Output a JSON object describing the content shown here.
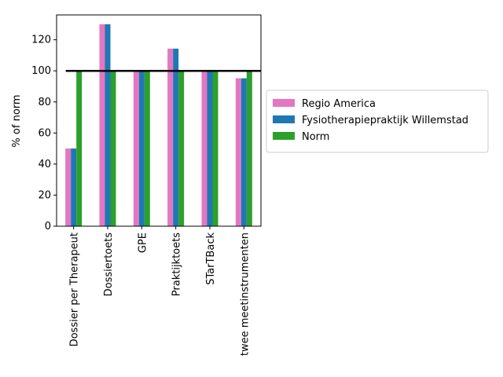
{
  "chart_data": {
    "type": "bar",
    "title": "",
    "xlabel": "",
    "ylabel": "% of norm",
    "ylim": [
      0,
      136
    ],
    "yticks": [
      0,
      20,
      40,
      60,
      80,
      100,
      120
    ],
    "categories": [
      "Dossier per Therapeut",
      "Dossiertoets",
      "GPE",
      "Praktijktoets",
      "STarTBack",
      "twee meetinstrumenten"
    ],
    "series": [
      {
        "name": "Regio America",
        "color": "#e377c2",
        "values": [
          50,
          130,
          100,
          114.3,
          100,
          95.2
        ]
      },
      {
        "name": "Fysiotherapiepraktijk Willemstad",
        "color": "#1f77b4",
        "values": [
          50,
          130,
          100,
          114.3,
          100,
          95.2
        ]
      },
      {
        "name": "Norm",
        "color": "#2ca02c",
        "values": [
          100,
          100,
          100,
          100,
          100,
          100
        ]
      }
    ],
    "reference_line": {
      "value": 100,
      "color": "#000000"
    },
    "legend_position": "outside-right",
    "grid": false
  }
}
